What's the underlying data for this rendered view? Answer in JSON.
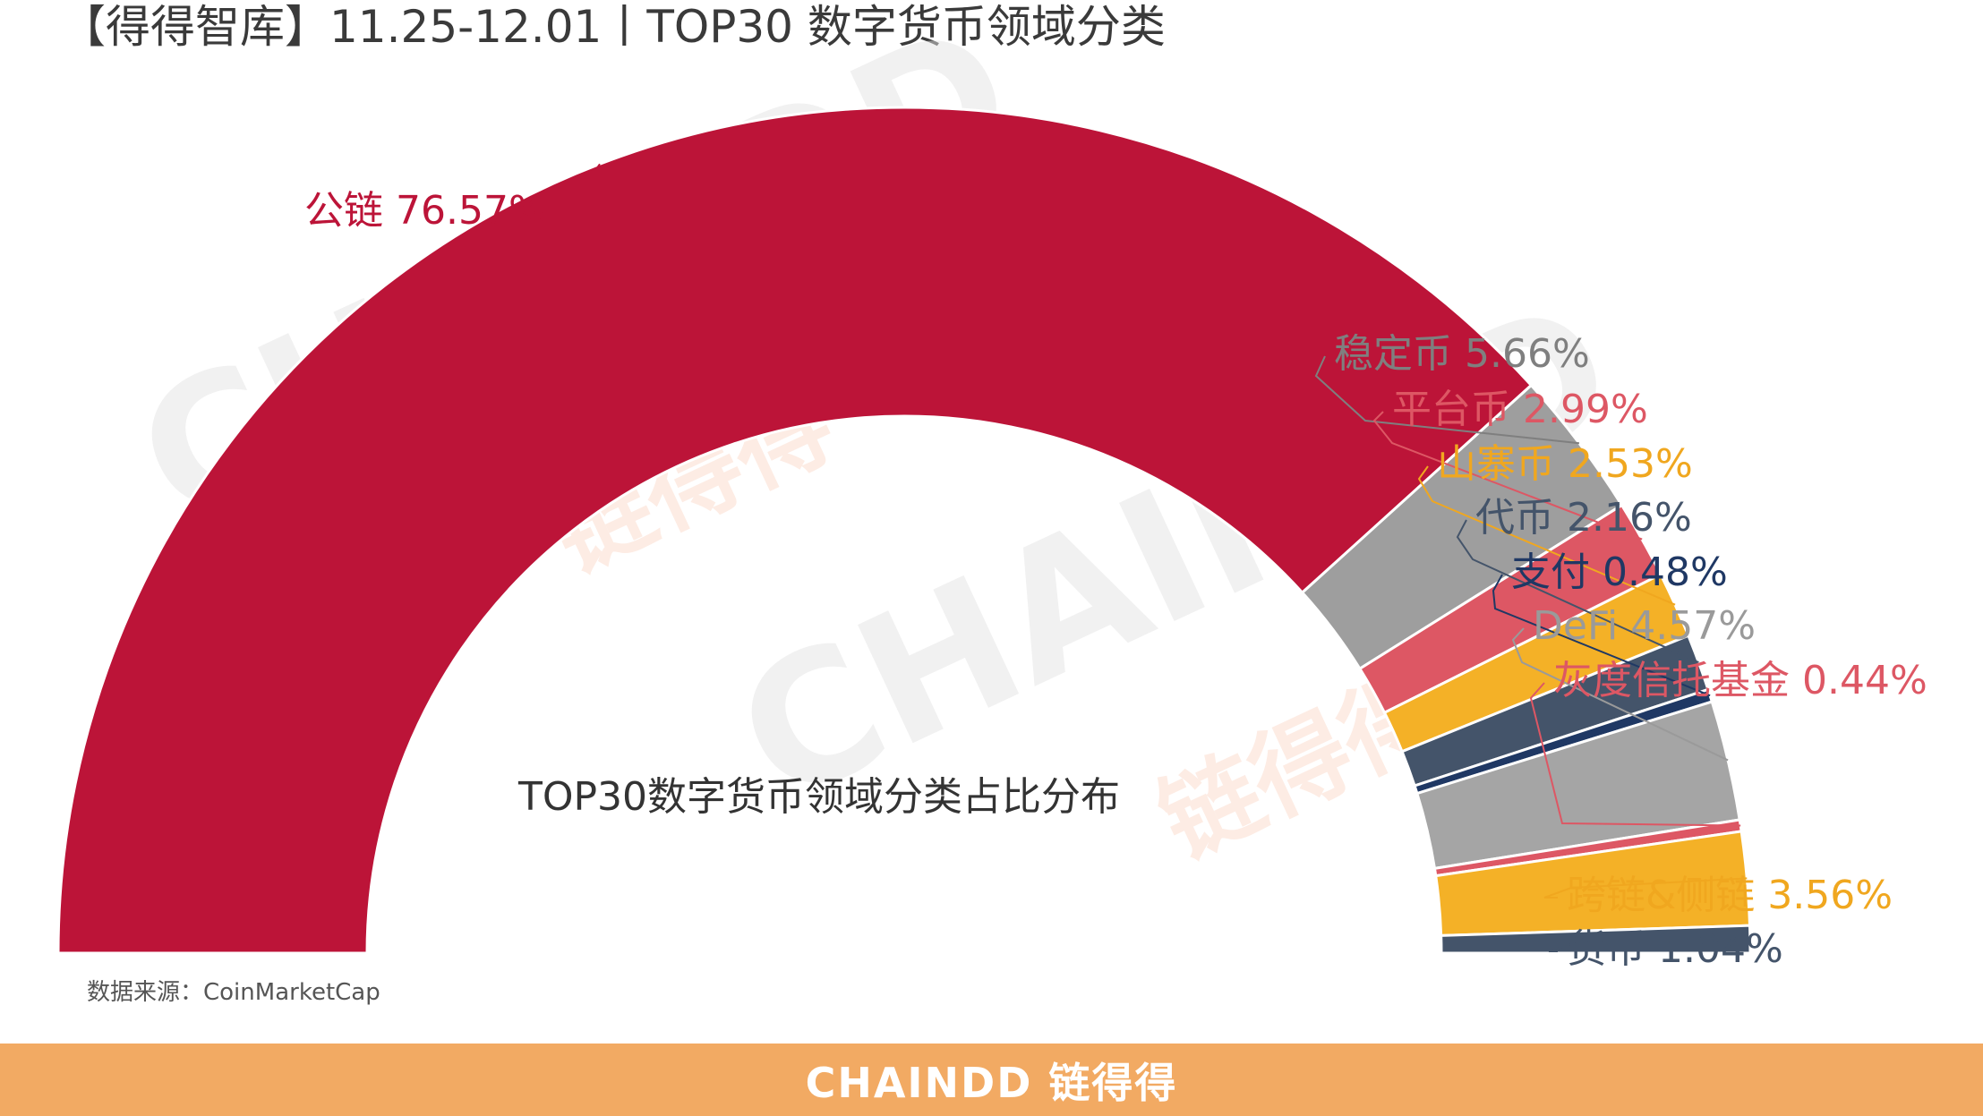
{
  "header": {
    "title": "【得得智库】11.25-12.01丨TOP30 数字货币领域分类"
  },
  "watermark": {
    "brand_text": "CHAINDD",
    "brand_cn": "链得得"
  },
  "chart_data": {
    "type": "pie",
    "subtype": "half-donut",
    "center_label": "TOP30数字货币领域分类占比分布",
    "unit": "%",
    "slices": [
      {
        "label": "公链",
        "value": 76.57,
        "value_text": "76.57%",
        "color": "#bc1438",
        "label_color": "#bc1438"
      },
      {
        "label": "稳定币",
        "value": 5.66,
        "value_text": "5.66%",
        "color": "#9e9e9e",
        "label_color": "#7f7f7f"
      },
      {
        "label": "平台币",
        "value": 2.99,
        "value_text": "2.99%",
        "color": "#dd5764",
        "label_color": "#dd5764"
      },
      {
        "label": "山寨币",
        "value": 2.53,
        "value_text": "2.53%",
        "color": "#f4b127",
        "label_color": "#f0a71f"
      },
      {
        "label": "代币",
        "value": 2.16,
        "value_text": "2.16%",
        "color": "#44546a",
        "label_color": "#44546a"
      },
      {
        "label": "支付",
        "value": 0.48,
        "value_text": "0.48%",
        "color": "#1f3864",
        "label_color": "#1f3864"
      },
      {
        "label": "DeFi",
        "value": 4.57,
        "value_text": "4.57%",
        "color": "#a5a5a5",
        "label_color": "#9a9a9a"
      },
      {
        "label": "灰度信托基金",
        "value": 0.44,
        "value_text": "0.44%",
        "color": "#dd5764",
        "label_color": "#dd5764"
      },
      {
        "label": "跨链&侧链",
        "value": 3.56,
        "value_text": "3.56%",
        "color": "#f4b127",
        "label_color": "#f0a71f"
      },
      {
        "label": "货币",
        "value": 1.04,
        "value_text": "1.04%",
        "color": "#44546a",
        "label_color": "#44546a"
      }
    ]
  },
  "source": {
    "text": "数据来源：CoinMarketCap"
  },
  "footer": {
    "logo_text": "CHAINDD 链得得",
    "background": "#f2aa63"
  }
}
